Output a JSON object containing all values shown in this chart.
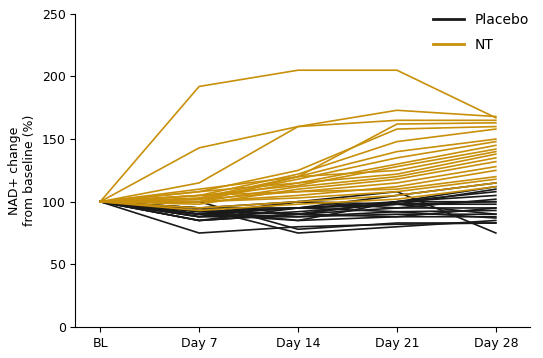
{
  "x_labels": [
    "BL",
    "Day 7",
    "Day 14",
    "Day 21",
    "Day 28"
  ],
  "x_positions": [
    0,
    1,
    2,
    3,
    4
  ],
  "placebo_color": "#1a1a1a",
  "nt_color": "#C8900A",
  "placebo_lines": [
    [
      100,
      93,
      90,
      88,
      95
    ],
    [
      100,
      90,
      88,
      90,
      90
    ],
    [
      100,
      95,
      95,
      98,
      98
    ],
    [
      100,
      88,
      100,
      95,
      95
    ],
    [
      100,
      85,
      95,
      92,
      93
    ],
    [
      100,
      75,
      80,
      82,
      83
    ],
    [
      100,
      90,
      85,
      88,
      88
    ],
    [
      100,
      95,
      75,
      80,
      85
    ],
    [
      100,
      100,
      78,
      83,
      83
    ],
    [
      100,
      88,
      88,
      92,
      87
    ],
    [
      100,
      90,
      95,
      98,
      90
    ],
    [
      100,
      95,
      100,
      98,
      100
    ],
    [
      100,
      92,
      90,
      100,
      100
    ],
    [
      100,
      85,
      90,
      95,
      102
    ],
    [
      100,
      90,
      95,
      100,
      105
    ],
    [
      100,
      93,
      85,
      100,
      108
    ],
    [
      100,
      88,
      92,
      98,
      110
    ],
    [
      100,
      85,
      90,
      100,
      112
    ],
    [
      100,
      92,
      95,
      105,
      115
    ],
    [
      100,
      90,
      100,
      108,
      75
    ]
  ],
  "nt_lines": [
    [
      100,
      192,
      205,
      205,
      167
    ],
    [
      100,
      143,
      160,
      173,
      168
    ],
    [
      100,
      115,
      160,
      165,
      165
    ],
    [
      100,
      110,
      120,
      162,
      163
    ],
    [
      100,
      108,
      125,
      158,
      160
    ],
    [
      100,
      105,
      122,
      148,
      158
    ],
    [
      100,
      103,
      120,
      140,
      150
    ],
    [
      100,
      102,
      118,
      135,
      148
    ],
    [
      100,
      108,
      115,
      130,
      145
    ],
    [
      100,
      105,
      113,
      128,
      142
    ],
    [
      100,
      100,
      120,
      125,
      140
    ],
    [
      100,
      102,
      115,
      122,
      138
    ],
    [
      100,
      100,
      112,
      120,
      135
    ],
    [
      100,
      98,
      110,
      118,
      132
    ],
    [
      100,
      105,
      108,
      115,
      128
    ],
    [
      100,
      100,
      105,
      112,
      125
    ],
    [
      100,
      102,
      108,
      110,
      120
    ],
    [
      100,
      100,
      103,
      108,
      118
    ],
    [
      100,
      95,
      100,
      105,
      115
    ],
    [
      100,
      93,
      98,
      102,
      112
    ]
  ],
  "ylabel": "NAD+ change\nfrom baseline (%)",
  "ylim": [
    0,
    250
  ],
  "yticks": [
    0,
    50,
    100,
    150,
    200,
    250
  ],
  "linewidth": 1.2,
  "legend_placebo": "Placebo",
  "legend_nt": "NT",
  "figsize": [
    5.43,
    3.58
  ],
  "dpi": 100
}
